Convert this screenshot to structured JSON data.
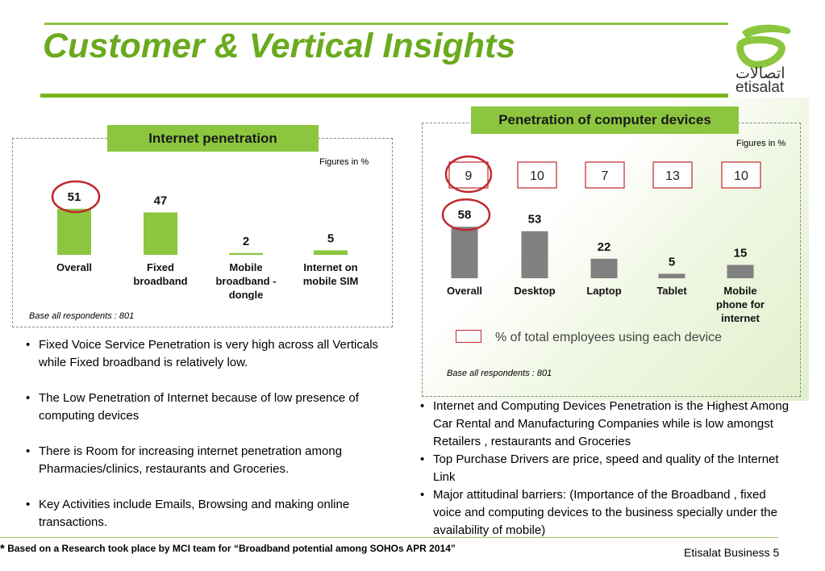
{
  "title": "Customer & Vertical Insights",
  "logo": {
    "arabic_text": "اتصالات",
    "latin_text": "etisalat"
  },
  "colors": {
    "accent_green": "#8cc63f",
    "title_green": "#6aaa1e",
    "bar_gray": "#808080",
    "highlight_red": "#c0272d"
  },
  "left_chart": {
    "header": "Internet penetration",
    "figures_note": "Figures in %",
    "base_note": "Base all respondents : 801"
  },
  "right_chart": {
    "header": "Penetration of computer devices",
    "figures_note": "Figures in %",
    "legend_label": "% of total employees using each device",
    "base_note": "Base all respondents : 801"
  },
  "chart_data": [
    {
      "type": "bar",
      "title": "Internet penetration",
      "categories": [
        "Overall",
        "Fixed broadband",
        "Mobile broadband - dongle",
        "Internet on mobile SIM"
      ],
      "values": [
        51,
        47,
        2,
        5
      ],
      "category_lines": [
        [
          "Overall"
        ],
        [
          "Fixed",
          "broadband"
        ],
        [
          "Mobile",
          "broadband -",
          "dongle"
        ],
        [
          "Internet on",
          "mobile SIM"
        ]
      ],
      "bar_color": "#8cc63f",
      "highlighted_index": 0,
      "ylim": [
        0,
        100
      ]
    },
    {
      "type": "bar",
      "title": "Penetration of computer devices",
      "categories": [
        "Overall",
        "Desktop",
        "Laptop",
        "Tablet",
        "Mobile phone for internet"
      ],
      "values": [
        58,
        53,
        22,
        5,
        15
      ],
      "category_lines": [
        [
          "Overall"
        ],
        [
          "Desktop"
        ],
        [
          "Laptop"
        ],
        [
          "Tablet"
        ],
        [
          "Mobile",
          "phone for",
          "internet"
        ]
      ],
      "employee_share": [
        9,
        10,
        7,
        13,
        10
      ],
      "bar_color": "#808080",
      "highlighted_index": 0,
      "ylim": [
        0,
        100
      ]
    }
  ],
  "left_bullets": [
    "Fixed Voice Service Penetration is very high across all Verticals while Fixed broadband is relatively low.",
    "The Low Penetration of Internet because of low presence of computing devices",
    "There is Room for increasing internet penetration among Pharmacies/clinics, restaurants and Groceries.",
    "Key Activities include Emails, Browsing and making online transactions."
  ],
  "right_bullets": [
    "Internet and Computing Devices Penetration is the Highest Among Car Rental and Manufacturing Companies while is low amongst Retailers , restaurants and Groceries",
    "Top Purchase Drivers are price, speed and quality of the Internet Link",
    "Major attitudinal barriers: (Importance of the Broadband , fixed voice and computing devices to the business specially under the availability of mobile)"
  ],
  "footnote": {
    "star": "*",
    "text": "Based on  a Research took place by MCI team for “Broadband potential among SOHOs APR 2014”"
  },
  "page_label": "Etisalat Business 5"
}
